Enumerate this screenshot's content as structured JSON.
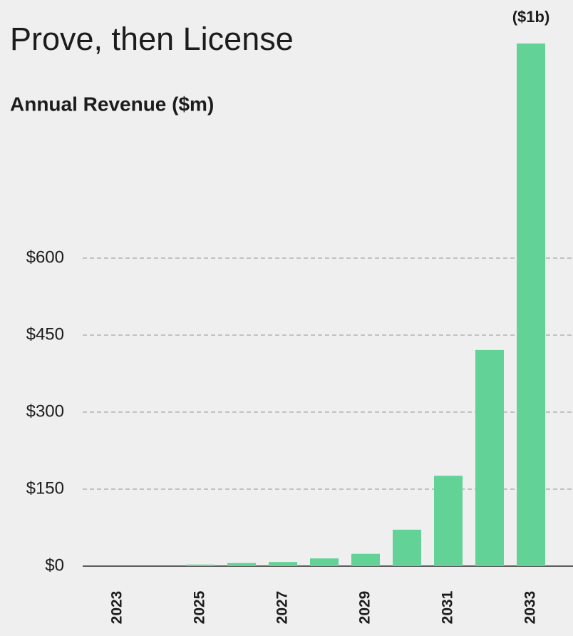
{
  "chart_data": {
    "type": "bar",
    "title": "Prove, then License",
    "subtitle": "Annual Revenue ($m)",
    "categories": [
      "2023",
      null,
      "2025",
      null,
      "2027",
      null,
      "2029",
      null,
      "2031",
      null,
      "2033"
    ],
    "values": [
      0,
      0,
      3,
      6,
      8,
      15,
      24,
      71,
      176,
      421,
      1018
    ],
    "value_labels": [
      null,
      null,
      null,
      null,
      null,
      null,
      null,
      null,
      null,
      null,
      "($1b)"
    ],
    "color": "#62d296",
    "ylim": [
      0,
      1050
    ],
    "yticks": [
      {
        "value": 0,
        "label": "$0"
      },
      {
        "value": 150,
        "label": "$150"
      },
      {
        "value": 300,
        "label": "$300"
      },
      {
        "value": 450,
        "label": "$450"
      },
      {
        "value": 600,
        "label": "$600"
      }
    ],
    "grid": true
  }
}
